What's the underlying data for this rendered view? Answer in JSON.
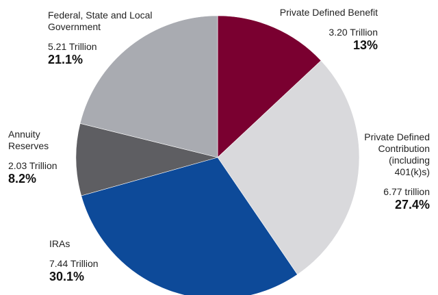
{
  "chart_data": {
    "type": "pie",
    "title": "",
    "start_angle_deg": 0,
    "direction": "clockwise",
    "slices": [
      {
        "label": "Private Defined Benefit",
        "amount": "3.20 Trillion",
        "percent_label": "13%",
        "value": 13.0,
        "color": "#7a0030"
      },
      {
        "label": "Private Defined Contribution (including 401(k)s)",
        "label_lines": "Private Defined\nContribution\n(including\n401(k)s)",
        "amount": "6.77 trillion",
        "percent_label": "27.4%",
        "value": 27.4,
        "color": "#d9d9dc"
      },
      {
        "label": "IRAs",
        "amount": "7.44 Trillion",
        "percent_label": "30.1%",
        "value": 30.1,
        "color": "#0d4a99"
      },
      {
        "label": "Annuity Reserves",
        "label_lines": "Annuity\nReserves",
        "amount": "2.03 Trillion",
        "percent_label": "8.2%",
        "value": 8.2,
        "color": "#5e5e62"
      },
      {
        "label": "Federal, State and Local Government",
        "label_lines": "Federal, State and Local\nGovernment",
        "amount": "5.21 Trillion",
        "percent_label": "21.1%",
        "value": 21.1,
        "color": "#a9abb1"
      }
    ],
    "legend": "none"
  }
}
